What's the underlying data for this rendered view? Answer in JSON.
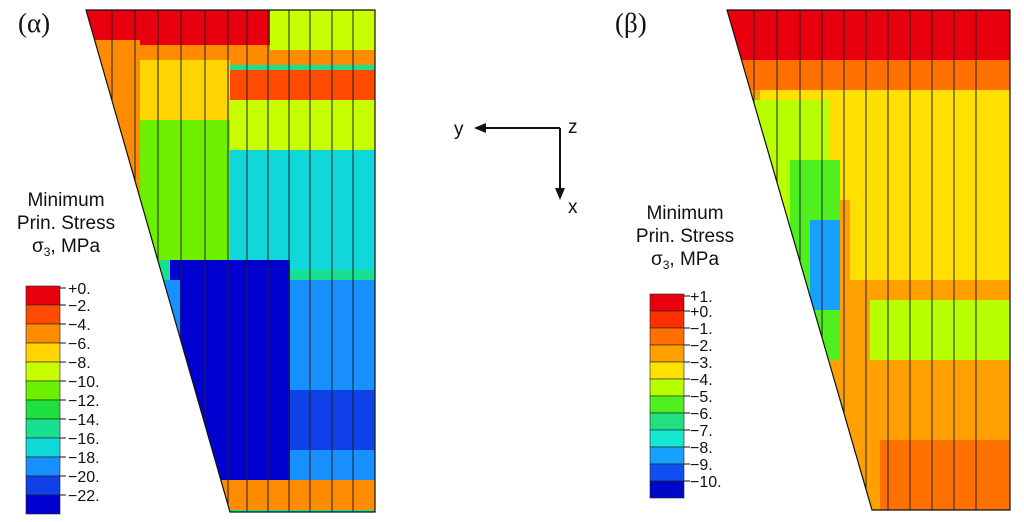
{
  "panels": [
    {
      "label": "(α)",
      "legend": {
        "line1": "Minimum",
        "line2": "Prin. Stress",
        "sigma": "σ",
        "sub": "3",
        "unit": ", MPa",
        "ticks": [
          "+0.",
          "−2.",
          "−4.",
          "−6.",
          "−8.",
          "−10.",
          "−12.",
          "−14.",
          "−16.",
          "−18.",
          "−20.",
          "−22."
        ],
        "colors": [
          "#e8000e",
          "#ff4a00",
          "#ff8c00",
          "#ffd400",
          "#c8ff00",
          "#6cf000",
          "#20e040",
          "#18e090",
          "#10d8d8",
          "#1890ff",
          "#1040e8",
          "#0000d0"
        ]
      }
    },
    {
      "label": "(β)",
      "legend": {
        "line1": "Minimum",
        "line2": "Prin. Stress",
        "sigma": "σ",
        "sub": "3",
        "unit": ", MPa",
        "ticks": [
          "+1.",
          "+0.",
          "−1.",
          "−2.",
          "−3.",
          "−4.",
          "−5.",
          "−6.",
          "−7.",
          "−8.",
          "−9.",
          "−10."
        ],
        "colors": [
          "#e8000e",
          "#ff3000",
          "#ff7000",
          "#ffa000",
          "#ffe000",
          "#b8ff00",
          "#50f020",
          "#20e080",
          "#18e8d0",
          "#18a0ff",
          "#1050f0",
          "#0008c8"
        ]
      }
    }
  ],
  "axes": {
    "y": "y",
    "z": "z",
    "x": "x"
  }
}
